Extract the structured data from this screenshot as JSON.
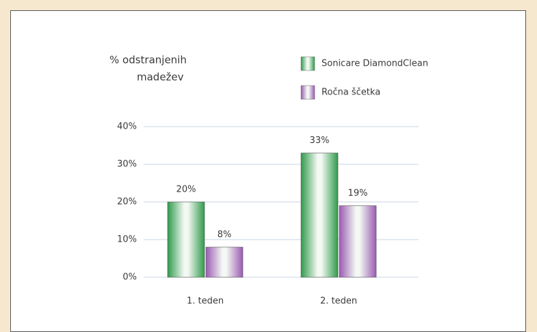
{
  "chart_data": {
    "type": "bar",
    "title": [
      "% odstranjenih",
      "madežev"
    ],
    "categories": [
      "1. teden",
      "2. teden"
    ],
    "series": [
      {
        "name": "Sonicare DiamondClean",
        "color": "#2f9a4a",
        "values": [
          20,
          33
        ],
        "value_labels": [
          "20%",
          "33%"
        ]
      },
      {
        "name": "Ročna ščetka",
        "color": "#9a5ab2",
        "values": [
          8,
          19
        ],
        "value_labels": [
          "8%",
          "19%"
        ]
      }
    ],
    "ylim": [
      0,
      40
    ],
    "yticks": [
      {
        "value": 0,
        "label": "0%"
      },
      {
        "value": 10,
        "label": "10%"
      },
      {
        "value": 20,
        "label": "20%"
      },
      {
        "value": 30,
        "label": "30%"
      },
      {
        "value": 40,
        "label": "40%"
      }
    ],
    "grid": true
  }
}
